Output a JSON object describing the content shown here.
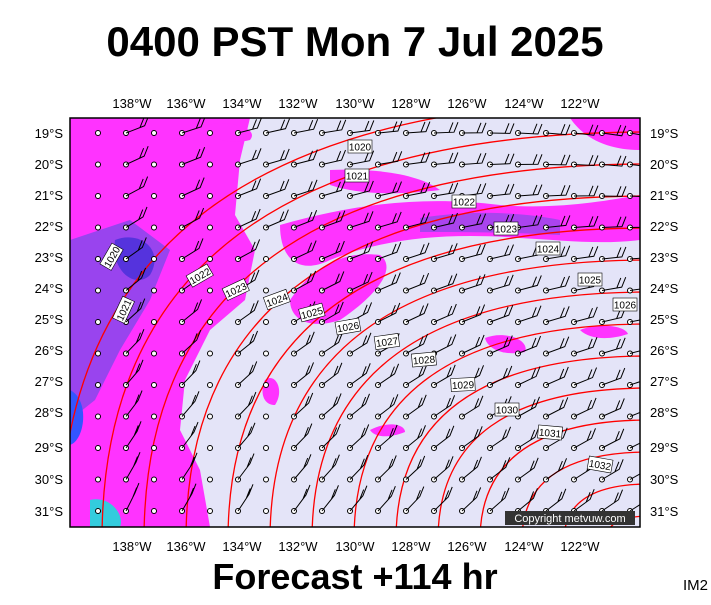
{
  "title": "0400 PST Mon 7 Jul 2025",
  "lon_labels": [
    "138°W",
    "136°W",
    "134°W",
    "132°W",
    "130°W",
    "128°W",
    "126°W",
    "124°W",
    "122°W"
  ],
  "lat_labels": [
    "19°S",
    "20°S",
    "21°S",
    "22°S",
    "23°S",
    "24°S",
    "25°S",
    "26°S",
    "27°S",
    "28°S",
    "29°S",
    "30°S",
    "31°S"
  ],
  "isobar_labels": [
    "1020",
    "1021",
    "1022",
    "1023",
    "1024",
    "1025",
    "1026",
    "1020",
    "1021",
    "1022",
    "1023",
    "1024",
    "1025",
    "1026",
    "1027",
    "1028",
    "1029",
    "1030",
    "1031",
    "1032"
  ],
  "copyright": "Copyright metvuw.com",
  "footer": "Forecast +114 hr",
  "corner": "IM2"
}
